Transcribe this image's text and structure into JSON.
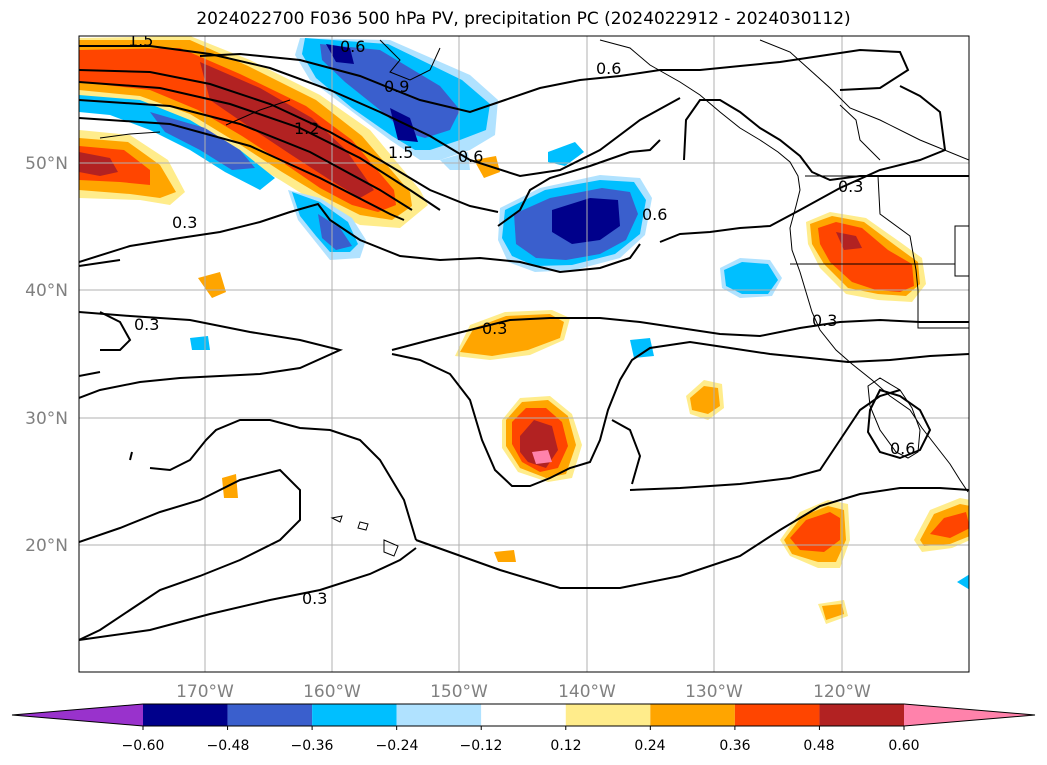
{
  "title": "2024022700 F036 500 hPa PV, precipitation PC (2024022912 - 2024030112)",
  "map": {
    "lat_labels": [
      "50°N",
      "40°N",
      "30°N",
      "20°N"
    ],
    "lon_labels": [
      "170°W",
      "160°W",
      "150°W",
      "140°W",
      "130°W",
      "120°W"
    ],
    "contour_labels": [
      "1.5",
      "0.6",
      "0.9",
      "1.2",
      "1.5",
      "0.6",
      "0.6",
      "0.6",
      "0.3",
      "0.3",
      "0.3",
      "0.3",
      "0.3",
      "0.3",
      "0.6"
    ]
  },
  "colorbar": {
    "tick_labels": [
      "−0.60",
      "−0.48",
      "−0.36",
      "−0.24",
      "−0.12",
      "0.12",
      "0.24",
      "0.36",
      "0.48",
      "0.60"
    ],
    "colors": [
      "#9932cc",
      "#00008b",
      "#3a5fcd",
      "#00bfff",
      "#b0e2ff",
      "#ffffff",
      "#ffec8b",
      "#ffa500",
      "#ff4500",
      "#b22222",
      "#ff82ab"
    ]
  },
  "colors": {
    "neg_deep": "#00008b",
    "neg_mid": "#3a5fcd",
    "neg_light": "#00bfff",
    "neg_pale": "#b0e2ff",
    "pos_pale": "#ffec8b",
    "pos_light": "#ffa500",
    "pos_mid": "#ff4500",
    "pos_deep": "#b22222",
    "pos_max": "#ff82ab"
  }
}
